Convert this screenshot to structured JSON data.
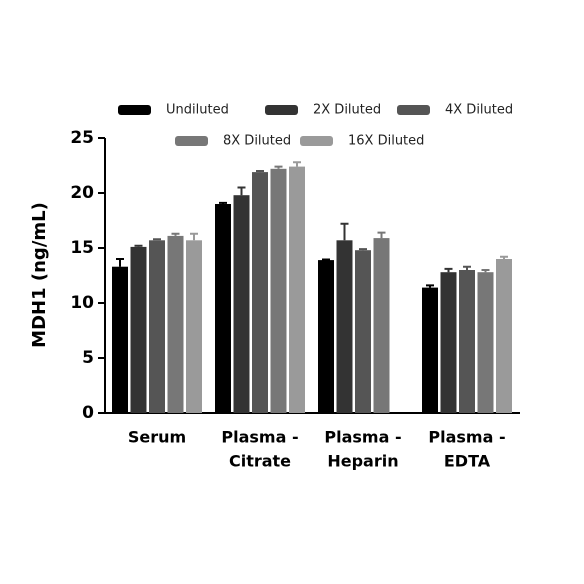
{
  "chart_data": {
    "type": "bar",
    "y_label": "MDH1 (ng/mL)",
    "categories": [
      [
        "Serum"
      ],
      [
        "Plasma -",
        "Citrate"
      ],
      [
        "Plasma -",
        "Heparin"
      ],
      [
        "Plasma -",
        "EDTA"
      ]
    ],
    "series": [
      {
        "name": "Undiluted",
        "color": "#000000",
        "values": [
          13.3,
          19.0,
          13.9,
          11.4
        ],
        "errors": [
          0.7,
          0.1,
          0.05,
          0.2
        ]
      },
      {
        "name": "2X Diluted",
        "color": "#333333",
        "values": [
          15.1,
          19.8,
          15.7,
          12.8
        ],
        "errors": [
          0.1,
          0.7,
          1.5,
          0.3
        ]
      },
      {
        "name": "4X Diluted",
        "color": "#555555",
        "values": [
          15.7,
          21.9,
          14.8,
          13.0
        ],
        "errors": [
          0.1,
          0.1,
          0.1,
          0.3
        ]
      },
      {
        "name": "8X Diluted",
        "color": "#777777",
        "values": [
          16.1,
          22.2,
          15.9,
          12.8
        ],
        "errors": [
          0.2,
          0.2,
          0.5,
          0.2
        ]
      },
      {
        "name": "16X Diluted",
        "color": "#9a9a9a",
        "values": [
          15.7,
          22.4,
          null,
          14.0
        ],
        "errors": [
          0.6,
          0.4,
          null,
          0.2
        ]
      }
    ],
    "ylim": [
      0,
      25
    ],
    "yticks": [
      0,
      5,
      10,
      15,
      20,
      25
    ]
  }
}
